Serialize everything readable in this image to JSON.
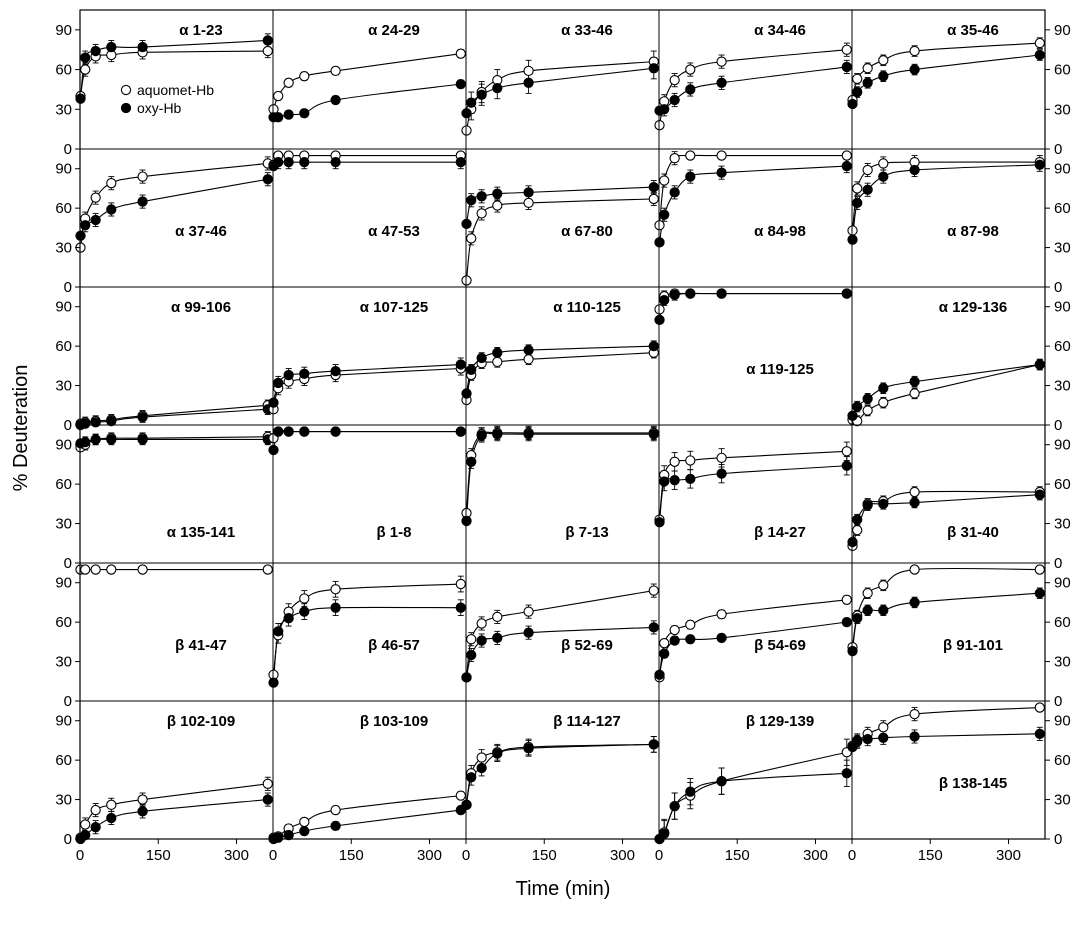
{
  "chart_data": {
    "type": "scatter",
    "layout": {
      "rows": 6,
      "cols": 5
    },
    "xlabel": "Time (min)",
    "ylabel": "% Deuteration",
    "xlim": [
      0,
      370
    ],
    "ylim": [
      0,
      105
    ],
    "xticks": [
      0,
      150,
      300
    ],
    "xtick_labels": [
      "0",
      "150",
      "300"
    ],
    "yticks": [
      0,
      30,
      60,
      90
    ],
    "ytick_labels": [
      "0",
      "30",
      "60",
      "90"
    ],
    "grid": false,
    "legend": {
      "placement": "inside first panel, left",
      "entries": [
        {
          "name": "aquomet-Hb",
          "marker": "open-circle"
        },
        {
          "name": "oxy-Hb",
          "marker": "filled-circle"
        }
      ]
    },
    "series_names": [
      "aquomet-Hb",
      "oxy-Hb"
    ],
    "times": [
      1,
      10,
      30,
      60,
      120,
      360
    ],
    "panels": [
      {
        "label": "α 1-23",
        "label_pos": "top",
        "aquomet": [
          40,
          60,
          70,
          71,
          73,
          74
        ],
        "oxy": [
          38,
          69,
          74,
          77,
          77,
          82
        ],
        "err": 5
      },
      {
        "label": "α 24-29",
        "label_pos": "top",
        "aquomet": [
          30,
          40,
          50,
          55,
          59,
          72
        ],
        "oxy": [
          24,
          24,
          26,
          27,
          37,
          49
        ],
        "err": 3
      },
      {
        "label": "α 33-46",
        "label_pos": "top",
        "aquomet": [
          14,
          30,
          43,
          52,
          59,
          66
        ],
        "oxy": [
          27,
          35,
          41,
          46,
          50,
          61
        ],
        "err": 8
      },
      {
        "label": "α 34-46",
        "label_pos": "top",
        "aquomet": [
          18,
          36,
          52,
          60,
          66,
          75
        ],
        "oxy": [
          29,
          30,
          37,
          45,
          50,
          62
        ],
        "err": 5
      },
      {
        "label": "α 35-46",
        "label_pos": "top",
        "aquomet": [
          37,
          53,
          61,
          67,
          74,
          80
        ],
        "oxy": [
          34,
          43,
          50,
          55,
          60,
          71
        ],
        "err": 4
      },
      {
        "label": "α 37-46",
        "label_pos": "middle",
        "aquomet": [
          30,
          52,
          68,
          79,
          84,
          94
        ],
        "oxy": [
          39,
          47,
          51,
          59,
          65,
          82
        ],
        "err": 5
      },
      {
        "label": "α 47-53",
        "label_pos": "middle",
        "aquomet": [
          93,
          100,
          100,
          100,
          100,
          100
        ],
        "oxy": [
          92,
          95,
          95,
          95,
          95,
          95
        ],
        "err": 5
      },
      {
        "label": "α 67-80",
        "label_pos": "middle",
        "aquomet": [
          5,
          37,
          56,
          62,
          64,
          67
        ],
        "oxy": [
          48,
          66,
          69,
          71,
          72,
          76
        ],
        "err": 5
      },
      {
        "label": "α 84-98",
        "label_pos": "middle",
        "aquomet": [
          47,
          81,
          98,
          100,
          100,
          100
        ],
        "oxy": [
          34,
          55,
          72,
          84,
          87,
          92
        ],
        "err": 5
      },
      {
        "label": "α 87-98",
        "label_pos": "middle",
        "aquomet": [
          43,
          75,
          89,
          94,
          95,
          95
        ],
        "oxy": [
          36,
          64,
          74,
          84,
          89,
          93
        ],
        "err": 5
      },
      {
        "label": "α 99-106",
        "label_pos": "top",
        "aquomet": [
          1,
          2,
          3,
          4,
          7,
          15
        ],
        "oxy": [
          0,
          1,
          2,
          3,
          6,
          12
        ],
        "err": 4
      },
      {
        "label": "α 107-125",
        "label_pos": "top",
        "aquomet": [
          12,
          28,
          33,
          35,
          38,
          43
        ],
        "oxy": [
          17,
          32,
          38,
          39,
          41,
          46
        ],
        "err": 5
      },
      {
        "label": "α 110-125",
        "label_pos": "top",
        "aquomet": [
          19,
          38,
          47,
          48,
          50,
          55
        ],
        "oxy": [
          24,
          42,
          51,
          55,
          57,
          60
        ],
        "err": 4
      },
      {
        "label": "α 119-125",
        "label_pos": "middle",
        "aquomet": [
          88,
          98,
          100,
          100,
          100,
          100
        ],
        "oxy": [
          80,
          95,
          99,
          100,
          100,
          100
        ],
        "err": 4
      },
      {
        "label": "α 129-136",
        "label_pos": "top",
        "aquomet": [
          4,
          3,
          11,
          17,
          24,
          46
        ],
        "oxy": [
          7,
          14,
          20,
          28,
          33,
          46
        ],
        "err": 4
      },
      {
        "label": "α 135-141",
        "label_pos": "bottom",
        "aquomet": [
          88,
          90,
          94,
          95,
          95,
          96
        ],
        "oxy": [
          91,
          92,
          94,
          94,
          94,
          94
        ],
        "err": 4
      },
      {
        "label": "β 1-8",
        "label_pos": "bottom",
        "aquomet": [
          95,
          100,
          100,
          100,
          100,
          100
        ],
        "oxy": [
          86,
          100,
          100,
          100,
          100,
          100
        ],
        "err": 3
      },
      {
        "label": "β 7-13",
        "label_pos": "bottom",
        "aquomet": [
          38,
          82,
          98,
          99,
          99,
          99
        ],
        "oxy": [
          32,
          77,
          97,
          98,
          98,
          98
        ],
        "err": 5
      },
      {
        "label": "β 14-27",
        "label_pos": "bottom",
        "aquomet": [
          33,
          67,
          77,
          78,
          80,
          85
        ],
        "oxy": [
          31,
          62,
          63,
          64,
          68,
          74
        ],
        "err": 7
      },
      {
        "label": "β 31-40",
        "label_pos": "bottom",
        "aquomet": [
          13,
          25,
          45,
          47,
          54,
          54
        ],
        "oxy": [
          16,
          33,
          44,
          45,
          46,
          52
        ],
        "err": 4
      },
      {
        "label": "β 41-47",
        "label_pos": "middle",
        "aquomet": [
          100,
          100,
          100,
          100,
          100,
          100
        ],
        "oxy": [],
        "err": 0
      },
      {
        "label": "β 46-57",
        "label_pos": "middle",
        "aquomet": [
          20,
          50,
          68,
          78,
          85,
          89
        ],
        "oxy": [
          14,
          53,
          63,
          68,
          71,
          71
        ],
        "err": 6
      },
      {
        "label": "β 52-69",
        "label_pos": "middle",
        "aquomet": [
          18,
          47,
          59,
          64,
          68,
          84
        ],
        "oxy": [
          18,
          35,
          46,
          48,
          52,
          56
        ],
        "err": 5
      },
      {
        "label": "β 54-69",
        "label_pos": "middle",
        "aquomet": [
          18,
          44,
          54,
          58,
          66,
          77
        ],
        "oxy": [
          20,
          36,
          46,
          47,
          48,
          60
        ],
        "err": 3
      },
      {
        "label": "β 91-101",
        "label_pos": "middle",
        "aquomet": [
          41,
          65,
          82,
          88,
          100,
          100
        ],
        "oxy": [
          38,
          63,
          69,
          69,
          75,
          82
        ],
        "err": 4
      },
      {
        "label": "β 102-109",
        "label_pos": "top",
        "aquomet": [
          1,
          11,
          22,
          26,
          30,
          42
        ],
        "oxy": [
          0,
          3,
          9,
          16,
          21,
          30
        ],
        "err": 5
      },
      {
        "label": "β 103-109",
        "label_pos": "top",
        "aquomet": [
          1,
          2,
          8,
          13,
          22,
          33
        ],
        "oxy": [
          0,
          1,
          3,
          6,
          10,
          22
        ],
        "err": 3
      },
      {
        "label": "β 114-127",
        "label_pos": "top",
        "aquomet": [
          26,
          50,
          62,
          66,
          70,
          72
        ],
        "oxy": [
          26,
          47,
          54,
          65,
          69,
          72
        ],
        "err": 6
      },
      {
        "label": "β 129-139",
        "label_pos": "top",
        "aquomet": [
          0,
          5,
          25,
          33,
          44,
          66
        ],
        "oxy": [
          0,
          4,
          25,
          36,
          44,
          50
        ],
        "err": 10
      },
      {
        "label": "β 138-145",
        "label_pos": "middle",
        "aquomet": [
          71,
          74,
          80,
          85,
          95,
          100
        ],
        "oxy": [
          70,
          75,
          76,
          77,
          78,
          80
        ],
        "err": 5
      }
    ]
  }
}
